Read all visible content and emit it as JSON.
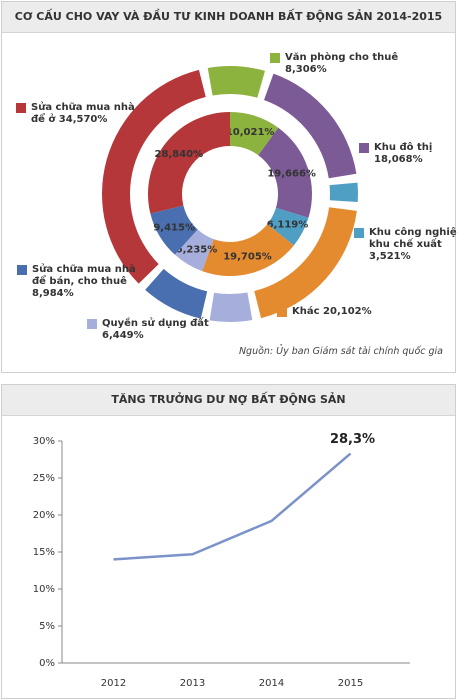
{
  "chart_data": [
    {
      "type": "donut",
      "title": "CƠ CẤU CHO VAY VÀ ĐẦU TƯ KINH DOANH BẤT ĐỘNG SẢN 2014-2015",
      "categories": [
        "Văn phòng cho thuê",
        "Khu đô thị",
        "Khu công nghiệp, khu chế xuất",
        "Khác",
        "Quyền sử dụng đất",
        "Sửa chữa mua nhà để bán, cho thuê",
        "Sửa chữa mua nhà để ở"
      ],
      "colors": [
        "#8db33f",
        "#7b5a96",
        "#4f9ec4",
        "#e58b2f",
        "#a6afdc",
        "#4a6fb0",
        "#b5373a"
      ],
      "series": [
        {
          "values": [
            10.021,
            19.666,
            6.119,
            19.705,
            6.235,
            9.415,
            28.84
          ],
          "value_labels": [
            "10,021%",
            "19,666%",
            "6,119%",
            "19,705%",
            "6,235%",
            "9,415%",
            "28,840%"
          ]
        },
        {
          "values": [
            8.306,
            18.068,
            3.521,
            20.102,
            6.449,
            8.984,
            34.57
          ],
          "value_labels": [
            "8,306%",
            "18,068%",
            "3,521%",
            "20,102%",
            "6,449%",
            "8,984%",
            "34,570%"
          ]
        }
      ],
      "source": "Nguồn: Ủy ban Giám sát tài chính quốc gia"
    },
    {
      "type": "line",
      "title": "TĂNG TRƯỞNG DƯ NỢ BẤT ĐỘNG SẢN",
      "categories": [
        "2012",
        "2013",
        "2014",
        "2015"
      ],
      "series": [
        {
          "color": "#7b93c9",
          "values": [
            14.0,
            14.7,
            19.2,
            28.3
          ],
          "value_labels": [
            null,
            null,
            null,
            "28,3%"
          ]
        }
      ],
      "ylim": [
        0,
        30
      ],
      "yticks": [
        {
          "value": 0,
          "label": "0%"
        },
        {
          "value": 5,
          "label": "5%"
        },
        {
          "value": 10,
          "label": "10%"
        },
        {
          "value": 15,
          "label": "15%"
        },
        {
          "value": 20,
          "label": "20%"
        },
        {
          "value": 25,
          "label": "25%"
        },
        {
          "value": 30,
          "label": "30%"
        }
      ]
    }
  ]
}
